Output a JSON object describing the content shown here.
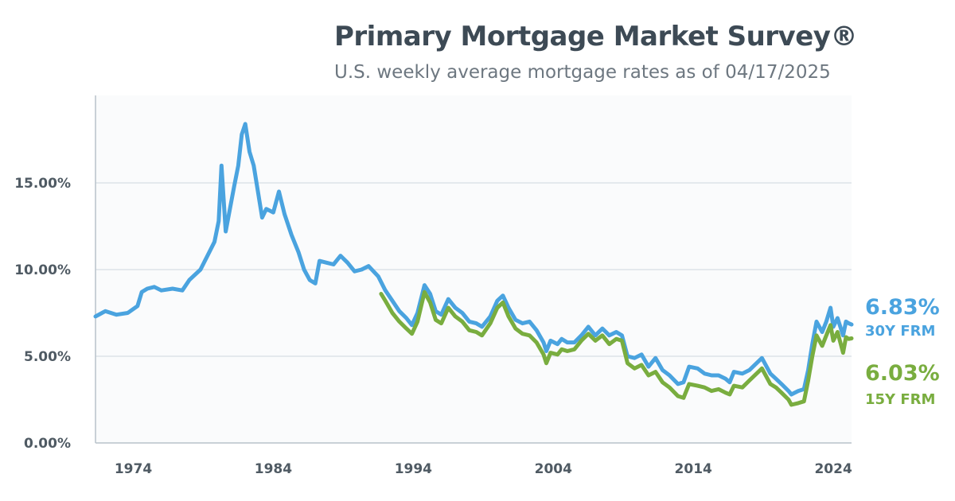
{
  "header": {
    "title": "Primary Mortgage Market Survey®",
    "subtitle": "U.S. weekly average mortgage rates as of 04/17/2025"
  },
  "colors": {
    "series_30y": "#4aa3df",
    "series_15y": "#79ad3f",
    "grid": "#dde3e8",
    "axis": "#b8c2ca",
    "plot_bg": "#fafbfc"
  },
  "chart_data": {
    "type": "line",
    "title": "Primary Mortgage Market Survey®",
    "subtitle": "U.S. weekly average mortgage rates as of 04/17/2025",
    "xlabel": "",
    "ylabel": "",
    "xlim": [
      1971.3,
      2025.3
    ],
    "ylim": [
      0,
      20
    ],
    "x_ticks": [
      1974,
      1984,
      1994,
      2004,
      2014,
      2024
    ],
    "x_tick_labels": [
      "1974",
      "1984",
      "1994",
      "2004",
      "2014",
      "2024"
    ],
    "y_ticks": [
      0,
      5,
      10,
      15
    ],
    "y_tick_labels": [
      "0.00%",
      "5.00%",
      "10.00%",
      "15.00%"
    ],
    "grid": "horizontal",
    "series": [
      {
        "name": "30Y FRM",
        "end_value_label": "6.83%",
        "color": "#4aa3df",
        "x": [
          1971.3,
          1972.0,
          1972.8,
          1973.6,
          1974.3,
          1974.6,
          1975.0,
          1975.5,
          1976.0,
          1976.8,
          1977.5,
          1978.0,
          1978.8,
          1979.3,
          1979.8,
          1980.1,
          1980.3,
          1980.6,
          1980.9,
          1981.2,
          1981.5,
          1981.75,
          1982.0,
          1982.3,
          1982.6,
          1982.9,
          1983.2,
          1983.5,
          1984.0,
          1984.4,
          1984.8,
          1985.3,
          1985.8,
          1986.2,
          1986.6,
          1987.0,
          1987.3,
          1987.8,
          1988.3,
          1988.8,
          1989.3,
          1989.8,
          1990.3,
          1990.8,
          1991.5,
          1992.0,
          1992.5,
          1993.0,
          1993.5,
          1993.9,
          1994.3,
          1994.8,
          1995.2,
          1995.6,
          1996.0,
          1996.5,
          1997.0,
          1997.5,
          1998.0,
          1998.5,
          1998.9,
          1999.5,
          2000.0,
          2000.4,
          2000.8,
          2001.3,
          2001.8,
          2002.3,
          2002.8,
          2003.3,
          2003.5,
          2003.8,
          2004.3,
          2004.6,
          2005.0,
          2005.5,
          2006.0,
          2006.5,
          2007.0,
          2007.5,
          2008.0,
          2008.5,
          2008.9,
          2009.3,
          2009.8,
          2010.3,
          2010.8,
          2011.3,
          2011.8,
          2012.3,
          2012.9,
          2013.3,
          2013.7,
          2014.3,
          2014.8,
          2015.3,
          2015.8,
          2016.3,
          2016.6,
          2016.9,
          2017.5,
          2018.0,
          2018.9,
          2019.5,
          2019.9,
          2020.3,
          2020.8,
          2021.0,
          2021.5,
          2021.9,
          2022.2,
          2022.5,
          2022.8,
          2023.2,
          2023.5,
          2023.8,
          2024.0,
          2024.3,
          2024.7,
          2024.9,
          2025.1,
          2025.3
        ],
        "y": [
          7.3,
          7.6,
          7.4,
          7.5,
          7.9,
          8.7,
          8.9,
          9.0,
          8.8,
          8.9,
          8.8,
          9.4,
          10.0,
          10.8,
          11.6,
          12.8,
          16.0,
          12.2,
          13.5,
          14.8,
          16.0,
          17.8,
          18.4,
          16.8,
          16.0,
          14.5,
          13.0,
          13.5,
          13.3,
          14.5,
          13.2,
          12.0,
          11.0,
          10.0,
          9.4,
          9.2,
          10.5,
          10.4,
          10.3,
          10.8,
          10.4,
          9.9,
          10.0,
          10.2,
          9.6,
          8.8,
          8.2,
          7.6,
          7.2,
          6.8,
          7.5,
          9.1,
          8.6,
          7.6,
          7.4,
          8.3,
          7.8,
          7.5,
          7.0,
          6.9,
          6.7,
          7.3,
          8.2,
          8.5,
          7.8,
          7.1,
          6.9,
          7.0,
          6.5,
          5.8,
          5.3,
          5.9,
          5.7,
          6.0,
          5.8,
          5.8,
          6.2,
          6.7,
          6.2,
          6.6,
          6.2,
          6.4,
          6.2,
          5.0,
          4.9,
          5.1,
          4.4,
          4.9,
          4.2,
          3.9,
          3.4,
          3.5,
          4.4,
          4.3,
          4.0,
          3.9,
          3.9,
          3.7,
          3.5,
          4.1,
          4.0,
          4.2,
          4.9,
          4.0,
          3.7,
          3.4,
          3.0,
          2.8,
          3.0,
          3.1,
          4.2,
          5.7,
          7.0,
          6.4,
          7.0,
          7.8,
          6.7,
          7.2,
          6.2,
          7.0,
          6.9,
          6.83
        ]
      },
      {
        "name": "15Y FRM",
        "end_value_label": "6.03%",
        "color": "#79ad3f",
        "x": [
          1991.7,
          1992.0,
          1992.5,
          1993.0,
          1993.5,
          1993.9,
          1994.3,
          1994.8,
          1995.2,
          1995.6,
          1996.0,
          1996.5,
          1997.0,
          1997.5,
          1998.0,
          1998.5,
          1998.9,
          1999.5,
          2000.0,
          2000.4,
          2000.8,
          2001.3,
          2001.8,
          2002.3,
          2002.8,
          2003.3,
          2003.5,
          2003.8,
          2004.3,
          2004.6,
          2005.0,
          2005.5,
          2006.0,
          2006.5,
          2007.0,
          2007.5,
          2008.0,
          2008.5,
          2008.9,
          2009.3,
          2009.8,
          2010.3,
          2010.8,
          2011.3,
          2011.8,
          2012.3,
          2012.9,
          2013.3,
          2013.7,
          2014.3,
          2014.8,
          2015.3,
          2015.8,
          2016.3,
          2016.6,
          2016.9,
          2017.5,
          2018.0,
          2018.9,
          2019.5,
          2019.9,
          2020.3,
          2020.8,
          2021.0,
          2021.5,
          2021.9,
          2022.2,
          2022.5,
          2022.8,
          2023.2,
          2023.5,
          2023.8,
          2024.0,
          2024.3,
          2024.7,
          2024.9,
          2025.1,
          2025.3
        ],
        "y": [
          8.6,
          8.2,
          7.5,
          7.0,
          6.6,
          6.3,
          7.0,
          8.7,
          8.1,
          7.1,
          6.9,
          7.8,
          7.3,
          7.0,
          6.5,
          6.4,
          6.2,
          6.9,
          7.8,
          8.1,
          7.3,
          6.6,
          6.3,
          6.2,
          5.8,
          5.1,
          4.6,
          5.2,
          5.1,
          5.4,
          5.3,
          5.4,
          5.9,
          6.3,
          5.9,
          6.2,
          5.7,
          6.0,
          5.9,
          4.6,
          4.3,
          4.5,
          3.9,
          4.1,
          3.5,
          3.2,
          2.7,
          2.6,
          3.4,
          3.3,
          3.2,
          3.0,
          3.1,
          2.9,
          2.8,
          3.3,
          3.2,
          3.6,
          4.3,
          3.4,
          3.2,
          2.9,
          2.5,
          2.2,
          2.3,
          2.4,
          3.6,
          5.0,
          6.2,
          5.6,
          6.2,
          6.8,
          5.9,
          6.4,
          5.2,
          6.1,
          6.0,
          6.03
        ]
      }
    ]
  }
}
